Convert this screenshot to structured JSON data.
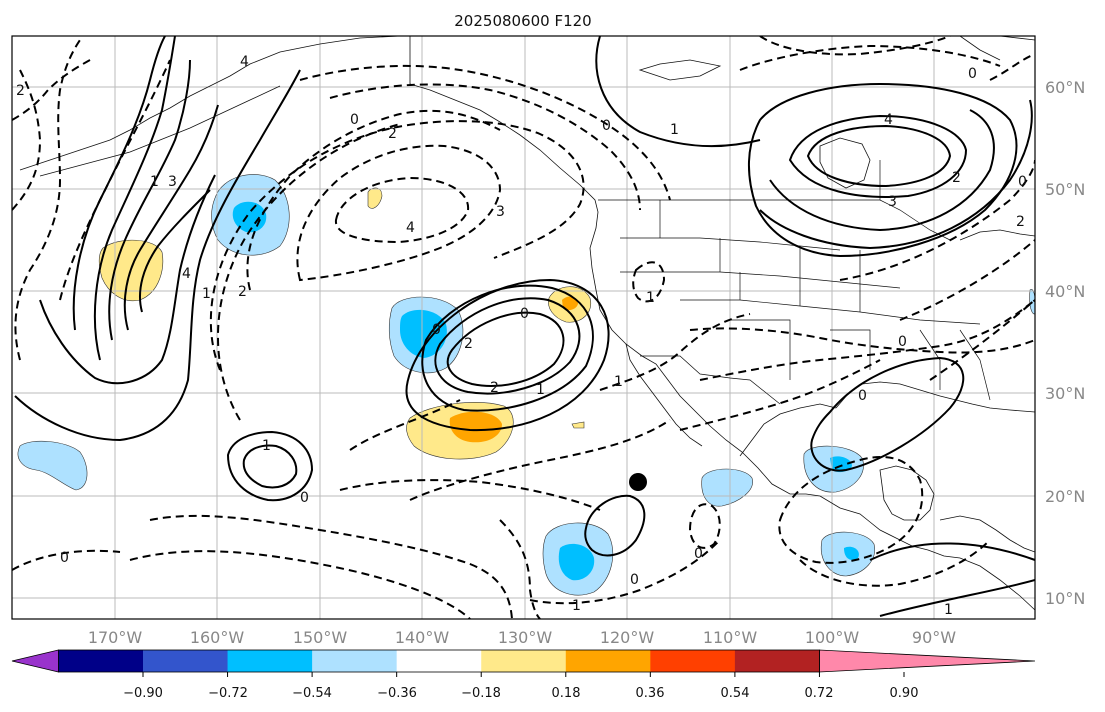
{
  "title": "2025080600 F120",
  "lat_labels": [
    "60°N",
    "50°N",
    "40°N",
    "30°N",
    "20°N",
    "10°N"
  ],
  "lon_labels": [
    "170°W",
    "160°W",
    "150°W",
    "140°W",
    "130°W",
    "120°W",
    "110°W",
    "100°W",
    "90°W"
  ],
  "colorbar": {
    "colors": [
      "#9933cc",
      "#000088",
      "#3355cc",
      "#00bfff",
      "#aee1ff",
      "#ffffff",
      "#ffe98a",
      "#ffa500",
      "#ff4000",
      "#b22222",
      "#ff88aa"
    ],
    "tick_labels": [
      "−0.90",
      "−0.72",
      "−0.54",
      "−0.36",
      "−0.18",
      "0.18",
      "0.36",
      "0.54",
      "0.72",
      "0.90"
    ]
  },
  "contour_labels": [
    "4",
    "0",
    "2",
    "2",
    "0",
    "1",
    "4",
    "3",
    "0",
    "2",
    "2",
    "0",
    "1",
    "3",
    "4",
    "1",
    "2",
    "4",
    "3",
    "0",
    "2",
    "0",
    "2",
    "1",
    "1",
    "0",
    "0",
    "1",
    "0",
    "0",
    "1",
    "1",
    "0",
    "0",
    "1"
  ],
  "marker": "black-dot"
}
